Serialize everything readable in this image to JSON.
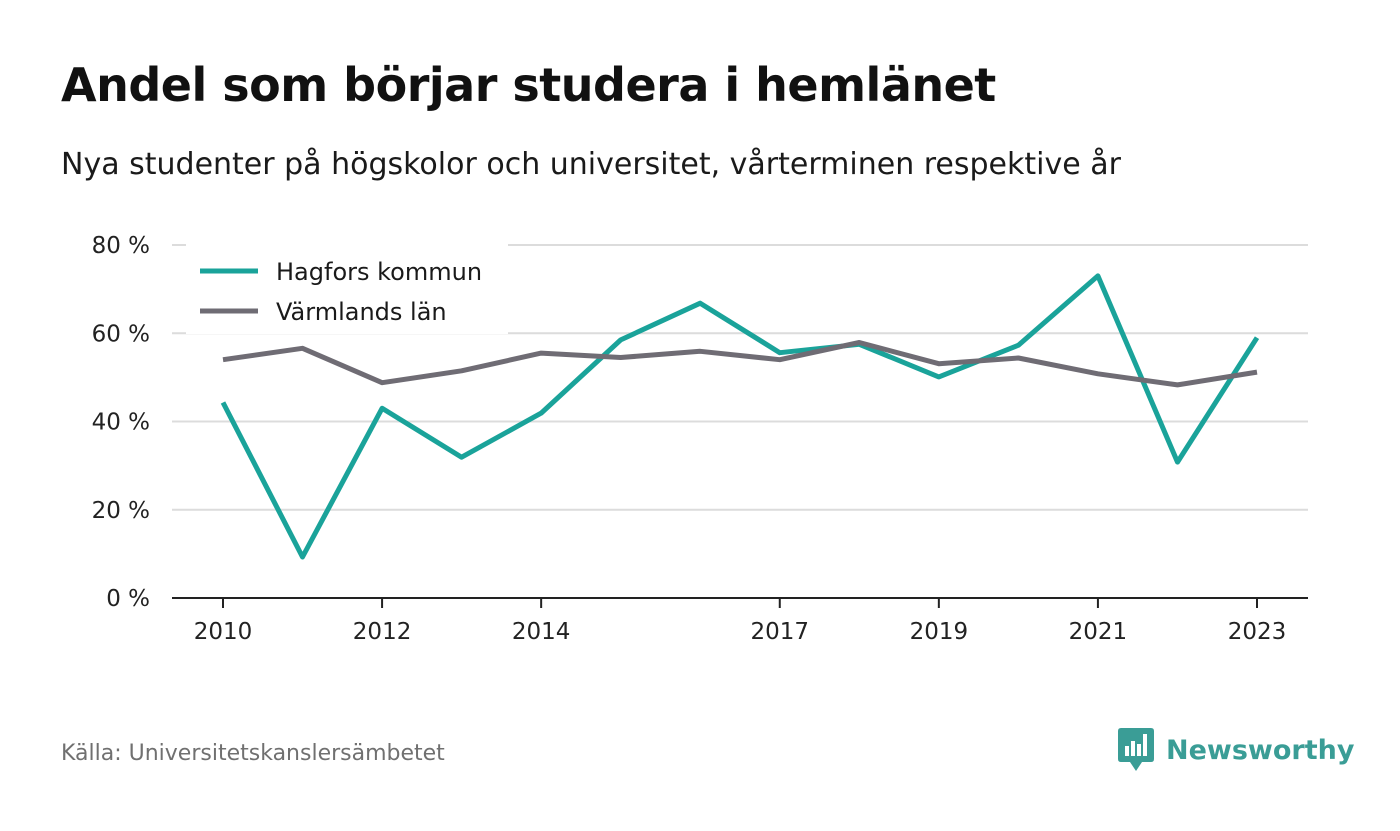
{
  "title": "Andel som börjar studera i hemlänet",
  "subtitle": "Nya studenter på högskolor och universitet, vårterminen respektive år",
  "source": "Källa: Universitetskanslersämbetet",
  "brand": {
    "name": "Newsworthy",
    "icon": "newsworthy-logo-icon",
    "color": "#3a9d96"
  },
  "colors": {
    "grid": "#dcdcdc",
    "axis": "#222222",
    "tick_text": "#222222"
  },
  "chart_data": {
    "type": "line",
    "x": [
      2010,
      2011,
      2012,
      2013,
      2014,
      2015,
      2016,
      2017,
      2018,
      2019,
      2020,
      2021,
      2022,
      2023
    ],
    "x_tick_labels": [
      "2010",
      "2012",
      "2014",
      "2017",
      "2019",
      "2021",
      "2023"
    ],
    "x_ticks": [
      2010,
      2012,
      2014,
      2017,
      2019,
      2021,
      2023
    ],
    "y_ticks": [
      0,
      20,
      40,
      60,
      80
    ],
    "y_tick_labels": [
      "0 %",
      "20 %",
      "40 %",
      "60 %",
      "80 %"
    ],
    "ylim": [
      0,
      80
    ],
    "xlabel": "",
    "ylabel": "",
    "grid": true,
    "legend_position": "top-left",
    "series": [
      {
        "name": "Hagfors kommun",
        "color": "#1aa39a",
        "values": [
          44.3,
          9.3,
          43.0,
          31.9,
          41.9,
          58.5,
          66.8,
          55.6,
          57.5,
          50.1,
          57.3,
          73.0,
          30.8,
          59.0
        ]
      },
      {
        "name": "Värmlands län",
        "color": "#6f6c74",
        "values": [
          54.0,
          56.6,
          48.8,
          51.5,
          55.5,
          54.5,
          55.9,
          54.0,
          57.9,
          53.1,
          54.4,
          50.8,
          48.3,
          51.2
        ]
      }
    ]
  }
}
